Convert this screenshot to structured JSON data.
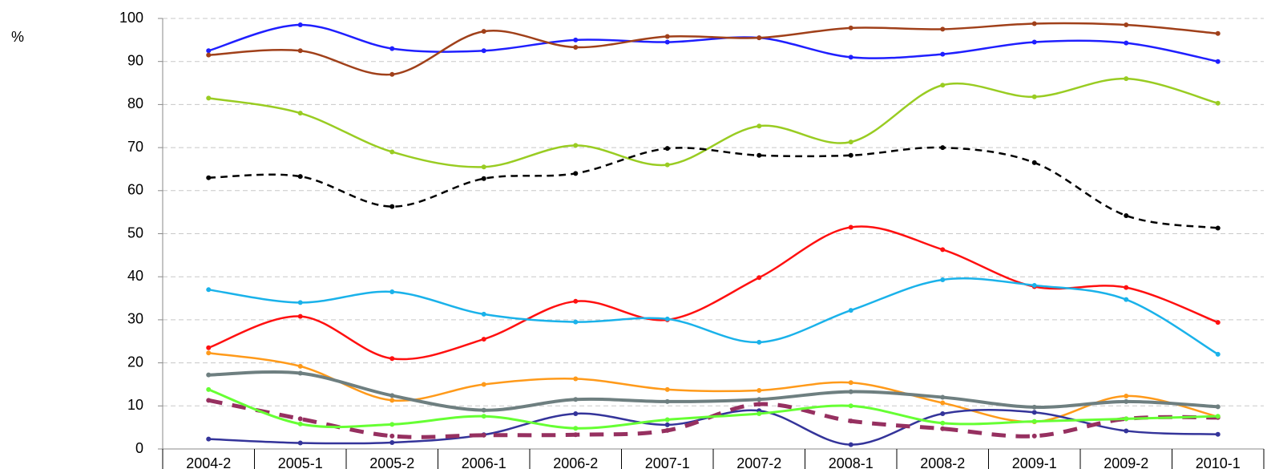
{
  "chart_data": {
    "type": "line",
    "y_label": "%",
    "categories": [
      "2004-2",
      "2005-1",
      "2005-2",
      "2006-1",
      "2006-2",
      "2007-1",
      "2007-2",
      "2008-1",
      "2008-2",
      "2009-1",
      "2009-2",
      "2010-1"
    ],
    "ylim": [
      0,
      100
    ],
    "yticks": [
      0,
      10,
      20,
      30,
      40,
      50,
      60,
      70,
      80,
      90,
      100
    ],
    "grid": true,
    "smooth": true,
    "series": [
      {
        "color": "#1f1fff",
        "values": [
          92.5,
          98.5,
          93,
          92.5,
          95,
          94.5,
          95.5,
          91,
          91.7,
          94.5,
          94.3,
          90
        ]
      },
      {
        "color": "#a0401a",
        "values": [
          91.5,
          92.5,
          87,
          97,
          93.3,
          95.8,
          95.5,
          97.8,
          97.5,
          98.8,
          98.5,
          96.5
        ]
      },
      {
        "color": "#99cc22",
        "values": [
          81.5,
          78,
          69,
          65.5,
          70.5,
          66,
          75,
          71.3,
          84.5,
          81.8,
          86,
          80.3
        ]
      },
      {
        "color": "#000000",
        "line_style": "dashed",
        "values": [
          63,
          63.3,
          56.3,
          62.8,
          64,
          69.8,
          68.2,
          68.2,
          70,
          66.5,
          54.2,
          51.3
        ]
      },
      {
        "color": "#ff1010",
        "values": [
          23.5,
          30.8,
          21,
          25.5,
          34.3,
          30,
          39.8,
          51.5,
          46.3,
          37.7,
          37.5,
          29.4
        ]
      },
      {
        "color": "#1ab2ea",
        "values": [
          37,
          34,
          36.5,
          31.3,
          29.5,
          30.2,
          24.8,
          32.2,
          39.3,
          38,
          34.7,
          22
        ]
      },
      {
        "color": "#ff9a1a",
        "values": [
          22.3,
          19.2,
          11.3,
          15,
          16.3,
          13.8,
          13.6,
          15.4,
          10.7,
          6.3,
          12.3,
          7.5
        ]
      },
      {
        "color": "#6e7f80",
        "linewidth": 4,
        "values": [
          17.2,
          17.6,
          12.4,
          9,
          11.5,
          11,
          11.5,
          13.3,
          12,
          9.7,
          11,
          9.8
        ]
      },
      {
        "color": "#34349a",
        "values": [
          2.3,
          1.4,
          1.5,
          3.3,
          8.2,
          5.6,
          8.9,
          1,
          8.2,
          8.5,
          4.2,
          3.4
        ]
      },
      {
        "color": "#963060",
        "line_style": "dashed",
        "linewidth": 5,
        "values": [
          11.3,
          7,
          3,
          3.2,
          3.3,
          4.3,
          10.4,
          6.5,
          4.7,
          3,
          7,
          7.3
        ]
      },
      {
        "color": "#66ff33",
        "linewidth": 3,
        "values": [
          13.8,
          5.8,
          5.7,
          7.6,
          4.8,
          6.8,
          8.2,
          10,
          6,
          6.4,
          7,
          7.6
        ]
      }
    ]
  }
}
